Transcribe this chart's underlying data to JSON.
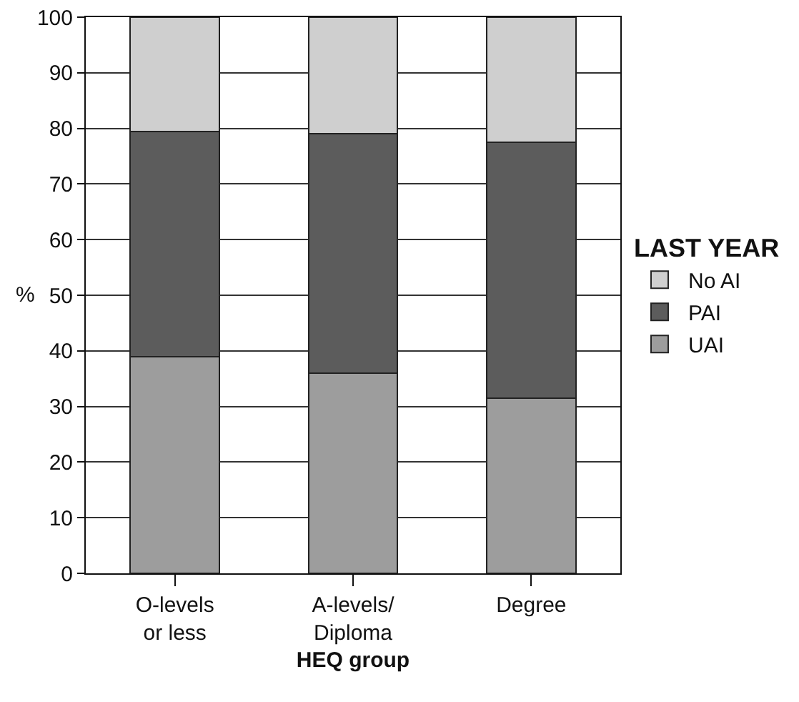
{
  "chart_data": {
    "type": "bar",
    "stacked": true,
    "xlabel": "HEQ group",
    "ylabel": "%",
    "legend_title": "LAST YEAR",
    "legend": "right",
    "grid": "y",
    "categories": [
      "O-levels\nor less",
      "A-levels/\nDiploma",
      "Degree"
    ],
    "series": [
      {
        "name": "UAI",
        "color": "#9d9d9d",
        "values": [
          39,
          36,
          31.5
        ]
      },
      {
        "name": "PAI",
        "color": "#5c5c5c",
        "values": [
          40.5,
          43,
          46
        ]
      },
      {
        "name": "No AI",
        "color": "#cfcfcf",
        "values": [
          20.5,
          21,
          22.5
        ]
      }
    ],
    "ylim": [
      0,
      100
    ],
    "yticks": [
      0,
      10,
      20,
      30,
      40,
      50,
      60,
      70,
      80,
      90,
      100
    ]
  }
}
